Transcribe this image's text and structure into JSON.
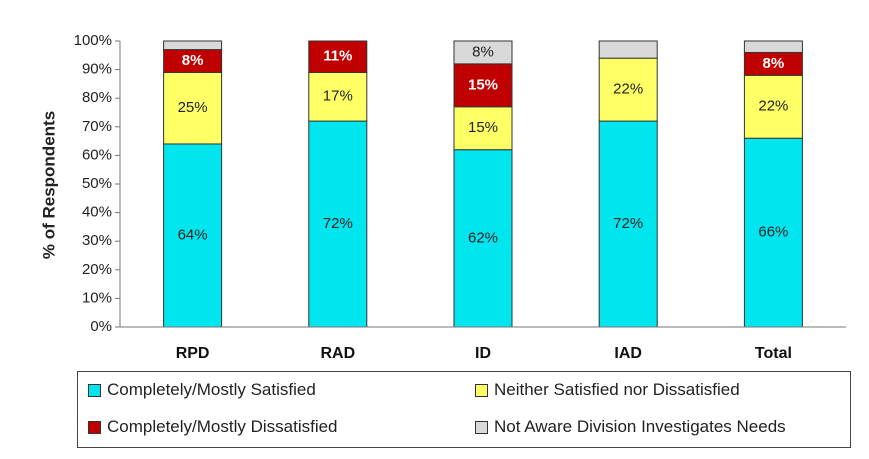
{
  "chart_data": {
    "type": "bar",
    "stacked": true,
    "ylabel": "% of Respondents",
    "xlabel": "",
    "ylim": [
      0,
      100
    ],
    "yticks": [
      "0%",
      "10%",
      "20%",
      "30%",
      "40%",
      "50%",
      "60%",
      "70%",
      "80%",
      "90%",
      "100%"
    ],
    "categories": [
      "RPD",
      "RAD",
      "ID",
      "IAD",
      "Total"
    ],
    "series": [
      {
        "name": "Completely/Mostly Satisfied",
        "color": "#00E5EE",
        "label_color": "#222222",
        "values": [
          64,
          72,
          62,
          72,
          66
        ],
        "labels": [
          "64%",
          "72%",
          "62%",
          "72%",
          "66%"
        ]
      },
      {
        "name": "Neither Satisfied nor Dissatisfied",
        "color": "#FFFF66",
        "label_color": "#222222",
        "values": [
          25,
          17,
          15,
          22,
          22
        ],
        "labels": [
          "25%",
          "17%",
          "15%",
          "22%",
          "22%"
        ]
      },
      {
        "name": "Completely/Mostly Dissatisfied",
        "color": "#C00000",
        "label_color": "#FFFFFF",
        "values": [
          8,
          11,
          15,
          0,
          8
        ],
        "labels": [
          "8%",
          "11%",
          "15%",
          "",
          "8%"
        ]
      },
      {
        "name": "Not Aware Division Investigates Needs",
        "color": "#D9D9D9",
        "label_color": "#222222",
        "values": [
          3,
          0,
          8,
          6,
          4
        ],
        "labels": [
          "",
          "",
          "8%",
          "",
          ""
        ]
      }
    ],
    "grid": false,
    "legend_position": "bottom"
  }
}
